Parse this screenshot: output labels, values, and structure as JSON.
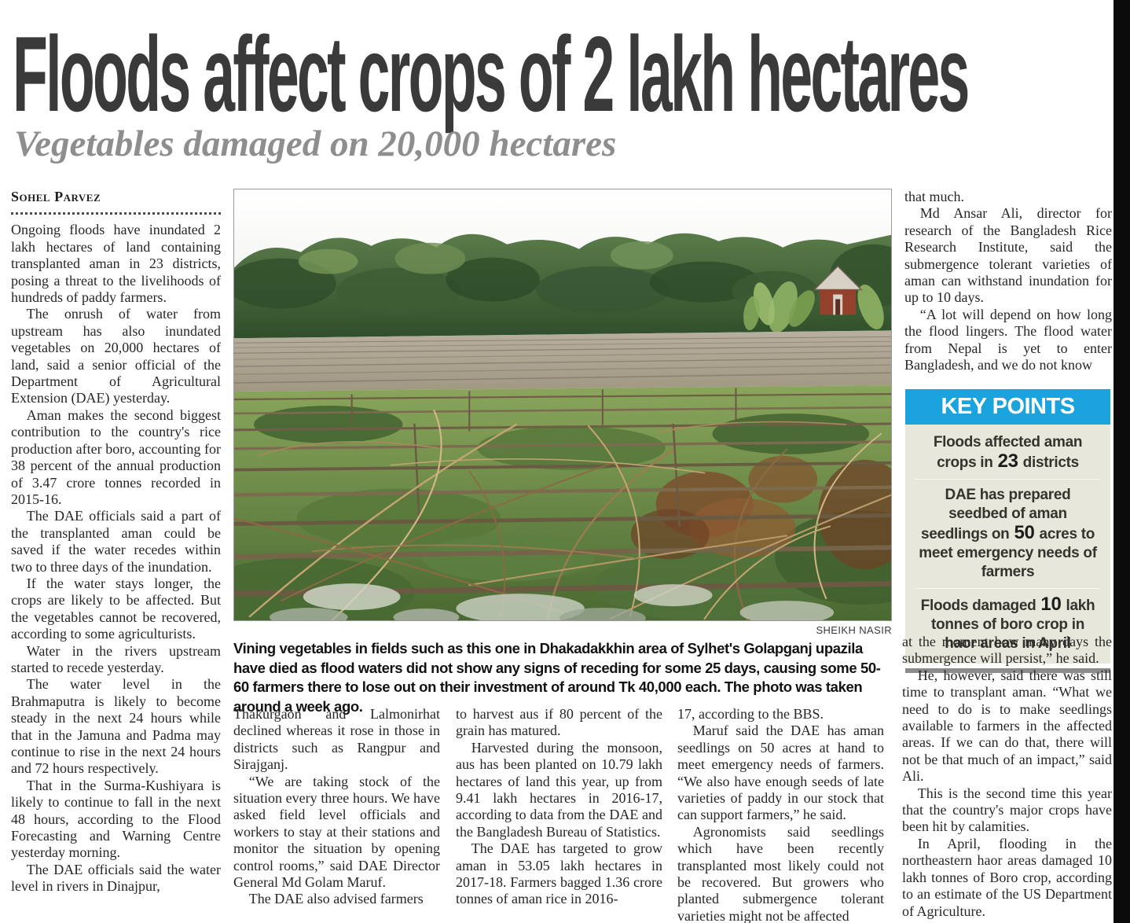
{
  "masthead": {
    "headline": "Floods affect crops of 2 lakh hectares",
    "subheadline": "Vegetables damaged on 20,000 hectares"
  },
  "byline": "Sohel Parvez",
  "photo": {
    "credit": "SHEIKH NASIR",
    "caption": "Vining vegetables in fields such as this one in Dhakadakkhin area of Sylhet's Golapganj upazila have died as flood waters did not show any signs of receding for some 25 days, causing some 50-60 farmers there to lose out on their investment of around Tk 40,000 each. The photo was taken around a week ago."
  },
  "columns": {
    "col1": [
      "Ongoing floods have inundated 2 lakh hectares of land containing transplanted aman in 23 districts, posing a threat to the livelihoods of hundreds of paddy farmers.",
      "The onrush of water from upstream has also inundated vegetables on 20,000 hectares of land, said a senior official of the Department of Agricultural Extension (DAE) yesterday.",
      "Aman makes the second biggest contribution to the country's rice production after boro, accounting for 38 percent of the annual production of 3.47 crore tonnes recorded in 2015-16.",
      "The DAE officials said a part of the transplanted aman could be saved if the water recedes within two to three days of the inundation.",
      "If the water stays longer, the crops are likely to be affected. But the vegetables cannot be recovered, according to some agriculturists.",
      "Water in the rivers upstream started to recede yesterday.",
      "The water level in the Brahmaputra is likely to become steady in the next 24 hours while that in the Jamuna and Padma may continue to rise in the next 24 hours and 72 hours respectively.",
      "That in the Surma-Kushiyara is likely to continue to fall in the next 48 hours, according to the Flood Forecasting and Warning Centre yesterday morning.",
      "The DAE officials said the water level in rivers in Dinajpur,"
    ],
    "col2": [
      "Thakurgaon and Lalmonirhat declined whereas it rose in those in districts such as Rangpur and Sirajganj.",
      "“We are taking stock of the situation every three hours. We have asked field level officials and workers to stay at their stations and monitor the situation by opening control rooms,” said DAE Director General Md Golam Maruf.",
      "The DAE also advised farmers"
    ],
    "col3": [
      "to harvest aus if 80 percent of the grain has matured.",
      "Harvested during the monsoon, aus has been planted on 10.79 lakh hectares of land this year, up from 9.41 lakh hectares in 2016-17, according to data from the DAE and the Bangladesh Bureau of Statistics.",
      "The DAE has targeted to grow aman in 53.05 lakh hectares in 2017-18. Farmers bagged 1.36 crore tonnes of aman rice in 2016-"
    ],
    "col4": [
      "17, according to the BBS.",
      "Maruf said the DAE has aman seedlings on 50 acres at hand to meet emergency needs of farmers. “We also have enough seeds of late varieties of paddy in our stock that can support farmers,” he said.",
      "Agronomists said seedlings which have been recently transplanted most likely could not be recovered. But growers who planted submergence tolerant varieties might not be affected"
    ],
    "col5_top": [
      "that much.",
      "Md Ansar Ali, director for research of the Bangladesh Rice Research Institute, said the submergence tolerant varieties of aman can withstand inundation for up to 10 days.",
      "“A lot will depend on how long the flood lingers. The flood water from Nepal is yet to enter Bangladesh, and we do not know"
    ],
    "col5_bottom": [
      "at the moment how many days the submergence will persist,” he said.",
      "He, however, said there was still time to transplant aman. “What we need to do is to make seedlings available to farmers in the affected areas. If we can do that, there will not be that much of an impact,” said Ali.",
      "This is the second time this year that the country's major crops have been hit by calamities.",
      "In April, flooding in the northeastern haor areas damaged 10 lakh tonnes of Boro crop, according to an estimate of the US Department of Agriculture."
    ]
  },
  "key_points": {
    "title": "KEY POINTS",
    "items": [
      {
        "pre": "Floods affected aman crops in ",
        "num": "23",
        "post": " districts"
      },
      {
        "pre": "DAE has prepared seedbed of aman seedlings on ",
        "num": "50",
        "post": " acres to meet emergency needs of farmers"
      },
      {
        "pre": "Floods damaged ",
        "num": "10",
        "post": " lakh tonnes of boro crop in haor areas in April"
      }
    ]
  },
  "colors": {
    "accent_blue": "#1ba3de",
    "keypoints_bg": "#e8e7db",
    "keypoints_bar": "#8b8b8b",
    "headline_gray": "#3a3a3a",
    "subheadline_gray": "#8e8e8e"
  }
}
